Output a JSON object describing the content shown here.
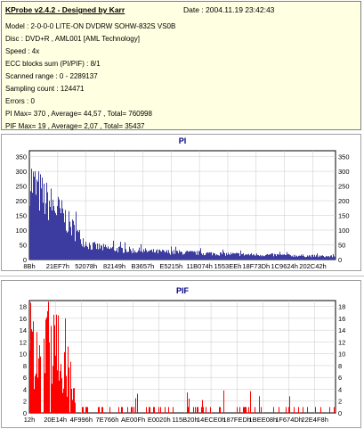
{
  "app_title": "KProbe v2.4.2 - Designed by Karr",
  "date_label": "Date : 2004.11.19 23:42:43",
  "info_lines": [
    "Model : 2-0-0-0 LITE-ON DVDRW SOHW-832S  VS0B",
    "Disc : DVD+R , AML001 [AML Technology]",
    "Speed : 4x",
    "ECC blocks sum (PI/PIF) : 8/1",
    "Scanned range : 0 - 2289137",
    "Sampling count : 124471",
    "Errors : 0",
    "PI Max= 370 , Average= 44,57 , Total= 760998",
    "PIF Max= 19 , Average= 2,07 , Total= 35437"
  ],
  "colors": {
    "pi_bars": "#3c3ca0",
    "pif_bars": "#ff0000",
    "title": "#000080",
    "info_bg": "#ffffe1"
  },
  "chart_data": [
    {
      "type": "bar",
      "title": "PI",
      "ylim": [
        0,
        370
      ],
      "yticks": [
        0,
        50,
        100,
        150,
        200,
        250,
        300,
        350
      ],
      "xticks": [
        "8Bh",
        "21EF7h",
        "52078h",
        "82149h",
        "B3657h",
        "E5215h",
        "11B074h",
        "1553EEh",
        "18F73Dh",
        "1C9624h",
        "202C42h"
      ],
      "profile": [
        [
          0,
          330
        ],
        [
          0.01,
          300
        ],
        [
          0.03,
          270
        ],
        [
          0.05,
          240
        ],
        [
          0.08,
          210
        ],
        [
          0.11,
          175
        ],
        [
          0.13,
          140
        ],
        [
          0.15,
          110
        ],
        [
          0.18,
          70
        ],
        [
          0.2,
          55
        ],
        [
          0.25,
          45
        ],
        [
          0.3,
          40
        ],
        [
          0.4,
          32
        ],
        [
          0.5,
          28
        ],
        [
          0.6,
          24
        ],
        [
          0.7,
          20
        ],
        [
          0.8,
          18
        ],
        [
          0.9,
          15
        ],
        [
          1.0,
          12
        ]
      ],
      "grid": true
    },
    {
      "type": "bar",
      "title": "PIF",
      "ylim": [
        0,
        19
      ],
      "yticks": [
        0,
        2,
        4,
        6,
        8,
        10,
        12,
        14,
        16,
        18
      ],
      "xticks": [
        "12h",
        "20E14h",
        "4F996h",
        "7E766h",
        "AE00Fh",
        "E0020h",
        "115B20h",
        "14ECE0h",
        "187FEDh",
        "1BEE08h",
        "1F674Dh",
        "22E4F8h"
      ],
      "profile": [
        [
          0,
          10
        ],
        [
          0.05,
          13
        ],
        [
          0.1,
          11
        ],
        [
          0.13,
          7
        ],
        [
          0.15,
          2
        ],
        [
          0.2,
          0.5
        ],
        [
          1.0,
          0.3
        ]
      ],
      "grid": true
    }
  ]
}
